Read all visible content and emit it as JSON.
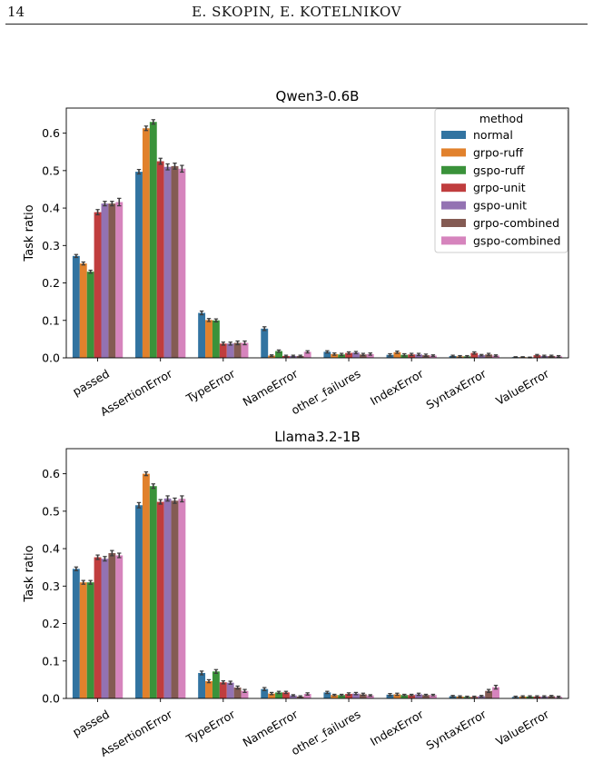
{
  "page": {
    "number": "14",
    "running_head": "E. SKOPIN, E. KOTELNIKOV"
  },
  "colors": {
    "normal": "#3274a1",
    "grpo-ruff": "#e1812c",
    "gspo-ruff": "#3a923a",
    "grpo-unit": "#c03d3e",
    "gspo-unit": "#9372b2",
    "grpo-combined": "#845b53",
    "gspo-combined": "#d684bd",
    "error_bar": "#3d3d3d"
  },
  "chart_data": [
    {
      "type": "bar",
      "title": "Qwen3-0.6B",
      "xlabel": "",
      "ylabel": "Task ratio",
      "ylim": [
        0,
        0.667
      ],
      "yticks": [
        0.0,
        0.1,
        0.2,
        0.3,
        0.4,
        0.5,
        0.6
      ],
      "ytick_labels": [
        "0.0",
        "0.1",
        "0.2",
        "0.3",
        "0.4",
        "0.5",
        "0.6"
      ],
      "grid": false,
      "legend": {
        "title": "method",
        "placement": "top-right"
      },
      "categories": [
        "passed",
        "AssertionError",
        "TypeError",
        "NameError",
        "other_failures",
        "IndexError",
        "SyntaxError",
        "ValueError"
      ],
      "series": [
        {
          "name": "normal",
          "values": [
            0.272,
            0.497,
            0.12,
            0.078,
            0.016,
            0.008,
            0.005,
            0.002
          ]
        },
        {
          "name": "grpo-ruff",
          "values": [
            0.252,
            0.613,
            0.101,
            0.006,
            0.01,
            0.015,
            0.004,
            0.002
          ]
        },
        {
          "name": "gspo-ruff",
          "values": [
            0.23,
            0.63,
            0.1,
            0.018,
            0.009,
            0.008,
            0.004,
            0.001
          ]
        },
        {
          "name": "grpo-unit",
          "values": [
            0.389,
            0.525,
            0.038,
            0.005,
            0.013,
            0.009,
            0.013,
            0.007
          ]
        },
        {
          "name": "gspo-unit",
          "values": [
            0.412,
            0.51,
            0.038,
            0.005,
            0.014,
            0.009,
            0.007,
            0.005
          ]
        },
        {
          "name": "grpo-combined",
          "values": [
            0.412,
            0.512,
            0.04,
            0.005,
            0.009,
            0.007,
            0.009,
            0.005
          ]
        },
        {
          "name": "gspo-combined",
          "values": [
            0.416,
            0.505,
            0.04,
            0.016,
            0.01,
            0.006,
            0.006,
            0.004
          ]
        }
      ],
      "errors": [
        [
          0.004,
          0.006,
          0.005,
          0.005,
          0.003,
          0.003,
          0.002,
          0.001
        ],
        [
          0.004,
          0.006,
          0.004,
          0.002,
          0.003,
          0.003,
          0.002,
          0.001
        ],
        [
          0.004,
          0.006,
          0.004,
          0.003,
          0.003,
          0.003,
          0.002,
          0.001
        ],
        [
          0.007,
          0.008,
          0.004,
          0.002,
          0.003,
          0.003,
          0.003,
          0.002
        ],
        [
          0.006,
          0.008,
          0.004,
          0.002,
          0.003,
          0.003,
          0.002,
          0.002
        ],
        [
          0.006,
          0.008,
          0.005,
          0.002,
          0.003,
          0.003,
          0.003,
          0.002
        ],
        [
          0.01,
          0.009,
          0.005,
          0.003,
          0.003,
          0.002,
          0.002,
          0.002
        ]
      ]
    },
    {
      "type": "bar",
      "title": "Llama3.2-1B",
      "xlabel": "",
      "ylabel": "Task ratio",
      "ylim": [
        0,
        0.667
      ],
      "yticks": [
        0.0,
        0.1,
        0.2,
        0.3,
        0.4,
        0.5,
        0.6
      ],
      "ytick_labels": [
        "0.0",
        "0.1",
        "0.2",
        "0.3",
        "0.4",
        "0.5",
        "0.6"
      ],
      "grid": false,
      "categories": [
        "passed",
        "AssertionError",
        "TypeError",
        "NameError",
        "other_failures",
        "IndexError",
        "SyntaxError",
        "ValueError"
      ],
      "series": [
        {
          "name": "normal",
          "values": [
            0.346,
            0.516,
            0.068,
            0.025,
            0.016,
            0.01,
            0.006,
            0.004
          ]
        },
        {
          "name": "grpo-ruff",
          "values": [
            0.31,
            0.6,
            0.046,
            0.013,
            0.009,
            0.011,
            0.005,
            0.005
          ]
        },
        {
          "name": "gspo-ruff",
          "values": [
            0.31,
            0.567,
            0.072,
            0.016,
            0.009,
            0.009,
            0.004,
            0.005
          ]
        },
        {
          "name": "grpo-unit",
          "values": [
            0.377,
            0.525,
            0.043,
            0.016,
            0.012,
            0.009,
            0.004,
            0.005
          ]
        },
        {
          "name": "gspo-unit",
          "values": [
            0.373,
            0.534,
            0.042,
            0.008,
            0.013,
            0.011,
            0.006,
            0.005
          ]
        },
        {
          "name": "grpo-combined",
          "values": [
            0.388,
            0.528,
            0.029,
            0.005,
            0.011,
            0.009,
            0.02,
            0.006
          ]
        },
        {
          "name": "gspo-combined",
          "values": [
            0.382,
            0.533,
            0.02,
            0.012,
            0.008,
            0.009,
            0.03,
            0.004
          ]
        }
      ],
      "errors": [
        [
          0.005,
          0.007,
          0.005,
          0.004,
          0.003,
          0.003,
          0.002,
          0.002
        ],
        [
          0.005,
          0.005,
          0.004,
          0.003,
          0.002,
          0.003,
          0.002,
          0.002
        ],
        [
          0.005,
          0.006,
          0.005,
          0.003,
          0.002,
          0.002,
          0.002,
          0.002
        ],
        [
          0.006,
          0.006,
          0.004,
          0.003,
          0.003,
          0.002,
          0.002,
          0.002
        ],
        [
          0.006,
          0.007,
          0.004,
          0.002,
          0.003,
          0.003,
          0.002,
          0.002
        ],
        [
          0.007,
          0.007,
          0.004,
          0.002,
          0.003,
          0.002,
          0.004,
          0.002
        ],
        [
          0.006,
          0.008,
          0.004,
          0.003,
          0.002,
          0.002,
          0.005,
          0.002
        ]
      ]
    }
  ]
}
